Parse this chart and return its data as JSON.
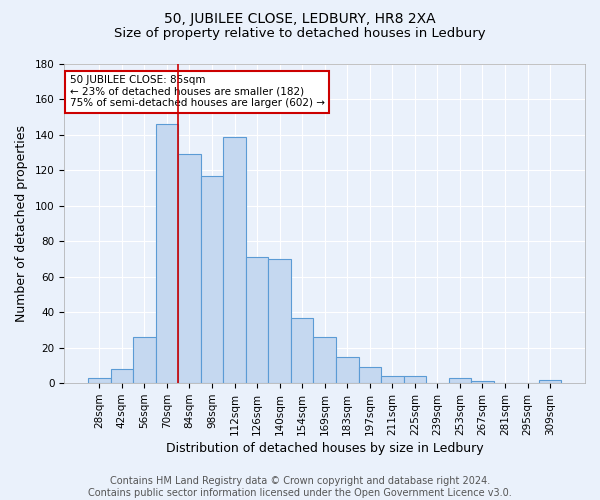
{
  "title": "50, JUBILEE CLOSE, LEDBURY, HR8 2XA",
  "subtitle": "Size of property relative to detached houses in Ledbury",
  "xlabel": "Distribution of detached houses by size in Ledbury",
  "ylabel": "Number of detached properties",
  "footer_line1": "Contains HM Land Registry data © Crown copyright and database right 2024.",
  "footer_line2": "Contains public sector information licensed under the Open Government Licence v3.0.",
  "bin_labels": [
    "28sqm",
    "42sqm",
    "56sqm",
    "70sqm",
    "84sqm",
    "98sqm",
    "112sqm",
    "126sqm",
    "140sqm",
    "154sqm",
    "169sqm",
    "183sqm",
    "197sqm",
    "211sqm",
    "225sqm",
    "239sqm",
    "253sqm",
    "267sqm",
    "281sqm",
    "295sqm",
    "309sqm"
  ],
  "bar_heights": [
    3,
    8,
    26,
    146,
    129,
    117,
    139,
    71,
    70,
    37,
    26,
    15,
    9,
    4,
    4,
    0,
    3,
    1,
    0,
    0,
    2
  ],
  "bar_color": "#c5d8f0",
  "bar_edge_color": "#5b9bd5",
  "bar_width": 1.0,
  "vline_x": 3.5,
  "vline_color": "#cc0000",
  "annotation_line1": "50 JUBILEE CLOSE: 85sqm",
  "annotation_line2": "← 23% of detached houses are smaller (182)",
  "annotation_line3": "75% of semi-detached houses are larger (602) →",
  "annotation_box_color": "#ffffff",
  "annotation_box_edge": "#cc0000",
  "ylim": [
    0,
    180
  ],
  "yticks": [
    0,
    20,
    40,
    60,
    80,
    100,
    120,
    140,
    160,
    180
  ],
  "background_color": "#eaf1fb",
  "grid_color": "#ffffff",
  "title_fontsize": 10,
  "subtitle_fontsize": 9.5,
  "label_fontsize": 9,
  "tick_fontsize": 7.5,
  "footer_fontsize": 7
}
